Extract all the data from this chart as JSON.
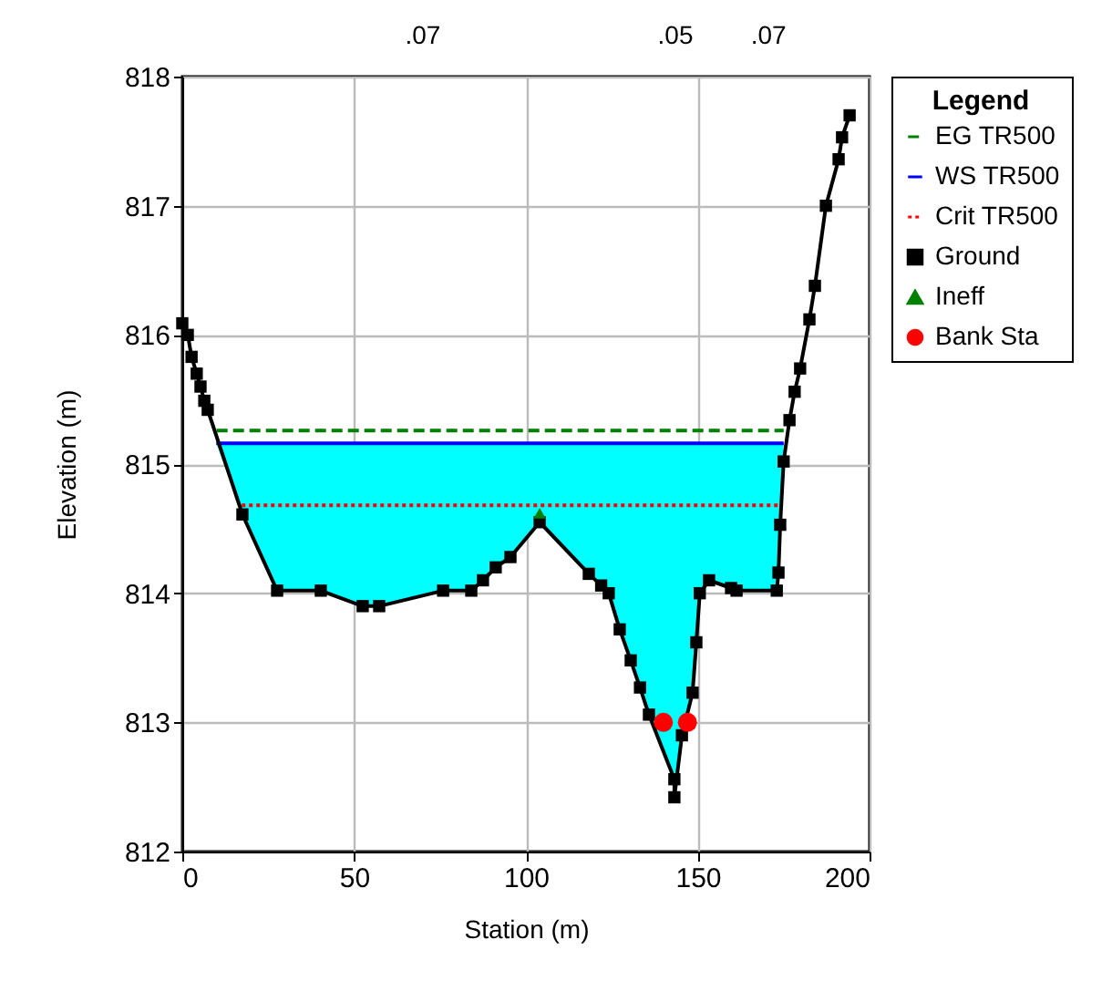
{
  "chart_data": {
    "type": "line",
    "xlabel": "Station (m)",
    "ylabel": "Elevation (m)",
    "legend_title": "Legend",
    "legend": "right",
    "grid": true,
    "xlim": [
      0,
      200
    ],
    "xticks": [
      0,
      50,
      100,
      150,
      200
    ],
    "ylim": [
      812,
      818
    ],
    "yticks": [
      812,
      813,
      814,
      815,
      816,
      817,
      818
    ],
    "annotations": [
      ".07",
      ".05",
      ".07"
    ],
    "series": [
      {
        "name": "EG TR500",
        "color": "#008000",
        "line_style": "dashed",
        "x": [
          10,
          175
        ],
        "values": [
          815.26,
          815.26
        ]
      },
      {
        "name": "WS TR500",
        "color": "#0000ff",
        "line_style": "solid",
        "x": [
          9.9,
          17.5,
          27.6,
          40.3,
          52.5,
          57.3,
          75.9,
          84.1,
          87.5,
          91.2,
          95.5,
          104,
          118.3,
          121.9,
          124.1,
          127.3,
          130.5,
          133.2,
          135.8,
          143.2,
          143.2,
          145.4,
          148.5,
          149.6,
          150.6,
          153.3,
          159.7,
          161.3,
          173,
          173.5,
          174,
          175
        ],
        "values": [
          815.16,
          815.16,
          815.16,
          815.16,
          815.16,
          815.16,
          815.16,
          815.16,
          815.16,
          815.16,
          815.16,
          815.16,
          815.16,
          815.16,
          815.16,
          815.16,
          815.16,
          815.16,
          815.16,
          815.16,
          815.16,
          815.16,
          815.16,
          815.16,
          815.16,
          815.16,
          815.16,
          815.16,
          815.16,
          815.16,
          815.16,
          815.16
        ],
        "lower": [
          815.16,
          814.61,
          814.02,
          814.02,
          813.9,
          813.9,
          814.02,
          814.02,
          814.1,
          814.2,
          814.28,
          814.55,
          814.15,
          814.06,
          814.0,
          813.72,
          813.48,
          813.27,
          813.06,
          812.56,
          812.42,
          812.9,
          813.23,
          813.62,
          814.0,
          814.1,
          814.04,
          814.02,
          814.02,
          814.16,
          814.53,
          815.16
        ],
        "upper": [
          815.16,
          815.16,
          815.16,
          815.16,
          815.16,
          815.16,
          815.16,
          815.16,
          815.16,
          815.16,
          815.16,
          815.16,
          815.16,
          815.16,
          815.16,
          815.16,
          815.16,
          815.16,
          815.16,
          815.16,
          815.16,
          815.16,
          815.16,
          815.16,
          815.16,
          815.16,
          815.16,
          815.16,
          815.16,
          815.16,
          815.16,
          815.16
        ]
      },
      {
        "name": "Crit TR500",
        "color": "#ff0000",
        "line_style": "dotted",
        "x": [
          17.3,
          174.5
        ],
        "values": [
          814.68,
          814.68
        ]
      },
      {
        "name": "Ground",
        "color": "#000000",
        "line_style": "solid",
        "marker": "square",
        "x": [
          0,
          1.6,
          2.7,
          4.2,
          5.3,
          6.4,
          7.4,
          17.5,
          27.6,
          40.3,
          52.5,
          57.3,
          75.9,
          84.1,
          87.5,
          91.2,
          95.5,
          104,
          118.3,
          121.9,
          124.1,
          127.3,
          130.5,
          133.2,
          135.8,
          143.2,
          143.2,
          145.4,
          148.5,
          149.6,
          150.6,
          153.3,
          159.7,
          161.3,
          173,
          173.5,
          174,
          175,
          176.7,
          178.2,
          179.8,
          182.5,
          184.1,
          187.3,
          191,
          192,
          194.2
        ],
        "values": [
          816.09,
          816.0,
          815.83,
          815.7,
          815.6,
          815.49,
          815.42,
          814.61,
          814.02,
          814.02,
          813.9,
          813.9,
          814.02,
          814.02,
          814.1,
          814.2,
          814.28,
          814.55,
          814.15,
          814.06,
          814.0,
          813.72,
          813.48,
          813.27,
          813.06,
          812.56,
          812.42,
          812.9,
          813.23,
          813.62,
          814.0,
          814.1,
          814.04,
          814.02,
          814.02,
          814.16,
          814.53,
          815.02,
          815.34,
          815.56,
          815.74,
          816.12,
          816.38,
          817.0,
          817.36,
          817.53,
          817.7
        ]
      },
      {
        "name": "Ineff",
        "type": "scatter",
        "color": "#008000",
        "marker": "triangle",
        "x": [
          104
        ],
        "values": [
          814.62
        ]
      },
      {
        "name": "Bank Sta",
        "type": "scatter",
        "color": "#ff0000",
        "marker": "circle",
        "x": [
          140,
          147
        ],
        "values": [
          813.0,
          813.0
        ]
      }
    ]
  }
}
